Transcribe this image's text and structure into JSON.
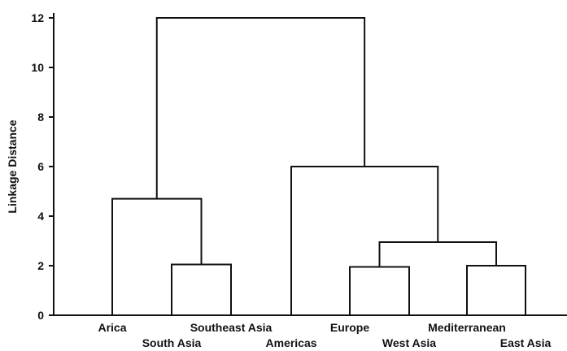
{
  "chart_data": {
    "type": "dendrogram",
    "ylabel": "Linkage Distance",
    "ylim": [
      0,
      12
    ],
    "yticks": [
      0,
      2,
      4,
      6,
      8,
      10,
      12
    ],
    "grid": false,
    "leaves": [
      "Arica",
      "South Asia",
      "Southeast Asia",
      "Americas",
      "Europe",
      "West Asia",
      "Mediterranean",
      "East Asia"
    ],
    "merges": [
      {
        "name": "m1",
        "children": [
          "South Asia",
          "Southeast Asia"
        ],
        "height": 2.05
      },
      {
        "name": "m2",
        "children": [
          "Europe",
          "West Asia"
        ],
        "height": 1.95
      },
      {
        "name": "m3",
        "children": [
          "Mediterranean",
          "East Asia"
        ],
        "height": 2.0
      },
      {
        "name": "m4",
        "children": [
          "m2",
          "m3"
        ],
        "height": 2.95
      },
      {
        "name": "m5",
        "children": [
          "Arica",
          "m1"
        ],
        "height": 4.7
      },
      {
        "name": "m6",
        "children": [
          "Americas",
          "m4"
        ],
        "height": 6.0
      },
      {
        "name": "m7",
        "children": [
          "m5",
          "m6"
        ],
        "height": 12.0
      }
    ]
  }
}
